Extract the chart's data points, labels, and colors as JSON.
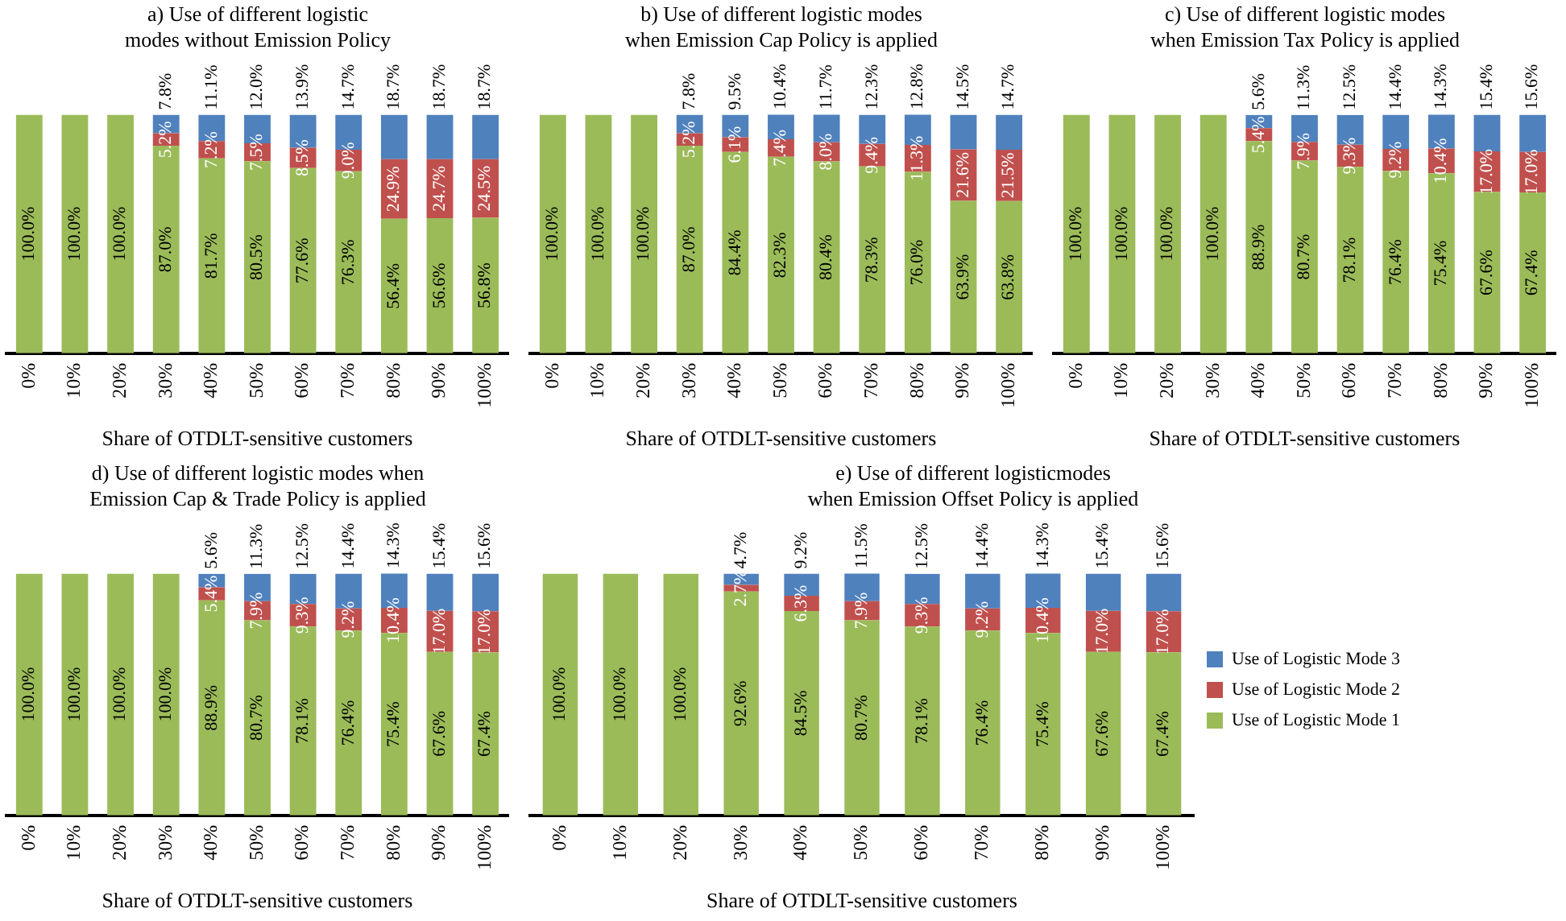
{
  "chart_data": [
    {
      "type": "bar",
      "stacked": true,
      "title": "a) Use of different logistic\nmodes without Emission Policy",
      "xlabel": "Share of OTDLT-sensitive customers",
      "categories": [
        "0%",
        "10%",
        "20%",
        "30%",
        "40%",
        "50%",
        "60%",
        "70%",
        "80%",
        "90%",
        "100%"
      ],
      "ylim": [
        0,
        100
      ],
      "tick_labels": "x",
      "legend": false,
      "series": [
        {
          "color": "#9bbb59",
          "values": [
            100,
            100,
            100,
            87.0,
            81.7,
            80.5,
            77.6,
            76.3,
            56.4,
            56.6,
            56.8
          ],
          "value_labels": [
            "100.0%",
            "100.0%",
            "100.0%",
            "87.0%",
            "81.7%",
            "80.5%",
            "77.6%",
            "76.3%",
            "56.4%",
            "56.6%",
            "56.8%"
          ]
        },
        {
          "color": "#c0504d",
          "values": [
            null,
            null,
            null,
            5.2,
            7.2,
            7.5,
            8.5,
            9.0,
            24.9,
            24.7,
            24.5
          ],
          "value_labels": [
            null,
            null,
            null,
            "5.2%",
            "7.2%",
            "7.5%",
            "8.5%",
            "9.0%",
            "24.9%",
            "24.7%",
            "24.5%"
          ]
        },
        {
          "color": "#4f81bd",
          "values": [
            null,
            null,
            null,
            7.8,
            11.1,
            12.0,
            13.9,
            14.7,
            18.7,
            18.7,
            18.7
          ],
          "value_labels": [
            null,
            null,
            null,
            "7.8%",
            "11.1%",
            "12.0%",
            "13.9%",
            "14.7%",
            "18.7%",
            "18.7%",
            "18.7%"
          ]
        }
      ]
    },
    {
      "type": "bar",
      "stacked": true,
      "title": "b) Use of different logistic modes\nwhen Emission Cap Policy is applied",
      "xlabel": "Share of OTDLT-sensitive customers",
      "categories": [
        "0%",
        "10%",
        "20%",
        "30%",
        "40%",
        "50%",
        "60%",
        "70%",
        "80%",
        "90%",
        "100%"
      ],
      "ylim": [
        0,
        100
      ],
      "tick_labels": "x",
      "legend": false,
      "series": [
        {
          "color": "#9bbb59",
          "values": [
            100,
            100,
            100,
            87.0,
            84.4,
            82.3,
            80.4,
            78.3,
            76.0,
            63.9,
            63.8
          ],
          "value_labels": [
            "100.0%",
            "100.0%",
            "100.0%",
            "87.0%",
            "84.4%",
            "82.3%",
            "80.4%",
            "78.3%",
            "76.0%",
            "63.9%",
            "63.8%"
          ]
        },
        {
          "color": "#c0504d",
          "values": [
            null,
            null,
            null,
            5.2,
            6.1,
            7.4,
            8.0,
            9.4,
            11.3,
            21.6,
            21.5
          ],
          "value_labels": [
            null,
            null,
            null,
            "5.2%",
            "6.1%",
            "7.4%",
            "8.0%",
            "9.4%",
            "11.3%",
            "21.6%",
            "21.5%"
          ]
        },
        {
          "color": "#4f81bd",
          "values": [
            null,
            null,
            null,
            7.8,
            9.5,
            10.4,
            11.7,
            12.3,
            12.8,
            14.5,
            14.7
          ],
          "value_labels": [
            null,
            null,
            null,
            "7.8%",
            "9.5%",
            "10.4%",
            "11.7%",
            "12.3%",
            "12.8%",
            "14.5%",
            "14.7%"
          ]
        }
      ]
    },
    {
      "type": "bar",
      "stacked": true,
      "title": "c) Use of different logistic modes\nwhen Emission Tax Policy is applied",
      "xlabel": "Share of OTDLT-sensitive customers",
      "categories": [
        "0%",
        "10%",
        "20%",
        "30%",
        "40%",
        "50%",
        "60%",
        "70%",
        "80%",
        "90%",
        "100%"
      ],
      "ylim": [
        0,
        100
      ],
      "tick_labels": "x",
      "legend": false,
      "series": [
        {
          "color": "#9bbb59",
          "values": [
            100,
            100,
            100,
            100,
            88.9,
            80.7,
            78.1,
            76.4,
            75.4,
            67.6,
            67.4
          ],
          "value_labels": [
            "100.0%",
            "100.0%",
            "100.0%",
            "100.0%",
            "88.9%",
            "80.7%",
            "78.1%",
            "76.4%",
            "75.4%",
            "67.6%",
            "67.4%"
          ]
        },
        {
          "color": "#c0504d",
          "values": [
            null,
            null,
            null,
            null,
            5.4,
            7.9,
            9.3,
            9.2,
            10.4,
            17.0,
            17.0
          ],
          "value_labels": [
            null,
            null,
            null,
            null,
            "5.4%",
            "7.9%",
            "9.3%",
            "9.2%",
            "10.4%",
            "17.0%",
            "17.0%"
          ]
        },
        {
          "color": "#4f81bd",
          "values": [
            null,
            null,
            null,
            null,
            5.6,
            11.3,
            12.5,
            14.4,
            14.3,
            15.4,
            15.6
          ],
          "value_labels": [
            null,
            null,
            null,
            null,
            "5.6%",
            "11.3%",
            "12.5%",
            "14.4%",
            "14.3%",
            "15.4%",
            "15.6%"
          ]
        }
      ]
    },
    {
      "type": "bar",
      "stacked": true,
      "title": "d) Use of different logistic modes when\nEmission Cap & Trade Policy is applied",
      "xlabel": "Share of OTDLT-sensitive customers",
      "categories": [
        "0%",
        "10%",
        "20%",
        "30%",
        "40%",
        "50%",
        "60%",
        "70%",
        "80%",
        "90%",
        "100%"
      ],
      "ylim": [
        0,
        100
      ],
      "tick_labels": "x",
      "legend": false,
      "series": [
        {
          "color": "#9bbb59",
          "values": [
            100,
            100,
            100,
            100,
            88.9,
            80.7,
            78.1,
            76.4,
            75.4,
            67.6,
            67.4
          ],
          "value_labels": [
            "100.0%",
            "100.0%",
            "100.0%",
            "100.0%",
            "88.9%",
            "80.7%",
            "78.1%",
            "76.4%",
            "75.4%",
            "67.6%",
            "67.4%"
          ]
        },
        {
          "color": "#c0504d",
          "values": [
            null,
            null,
            null,
            null,
            5.4,
            7.9,
            9.3,
            9.2,
            10.4,
            17.0,
            17.0
          ],
          "value_labels": [
            null,
            null,
            null,
            null,
            "5.4%",
            "7.9%",
            "9.3%",
            "9.2%",
            "10.4%",
            "17.0%",
            "17.0%"
          ]
        },
        {
          "color": "#4f81bd",
          "values": [
            null,
            null,
            null,
            null,
            5.6,
            11.3,
            12.5,
            14.4,
            14.3,
            15.4,
            15.6
          ],
          "value_labels": [
            null,
            null,
            null,
            null,
            "5.6%",
            "11.3%",
            "12.5%",
            "14.4%",
            "14.3%",
            "15.4%",
            "15.6%"
          ]
        }
      ]
    },
    {
      "type": "bar",
      "stacked": true,
      "title": "e) Use of different logisticmodes\nwhen Emission Offset Policy is applied",
      "xlabel": "Share of OTDLT-sensitive customers",
      "categories": [
        "0%",
        "10%",
        "20%",
        "30%",
        "40%",
        "50%",
        "60%",
        "70%",
        "80%",
        "90%",
        "100%"
      ],
      "ylim": [
        0,
        100
      ],
      "tick_labels": "x",
      "legend": "right",
      "series": [
        {
          "name": "Use of Logistic Mode 1",
          "color": "#9bbb59",
          "values": [
            100,
            100,
            100,
            92.6,
            84.5,
            80.7,
            78.1,
            76.4,
            75.4,
            67.6,
            67.4
          ],
          "value_labels": [
            "100.0%",
            "100.0%",
            "100.0%",
            "92.6%",
            "84.5%",
            "80.7%",
            "78.1%",
            "76.4%",
            "75.4%",
            "67.6%",
            "67.4%"
          ]
        },
        {
          "name": "Use of Logistic Mode 2",
          "color": "#c0504d",
          "values": [
            null,
            null,
            null,
            2.7,
            6.3,
            7.9,
            9.3,
            9.2,
            10.4,
            17.0,
            17.0
          ],
          "value_labels": [
            null,
            null,
            null,
            "2.7%",
            "6.3%",
            "7.9%",
            "9.3%",
            "9.2%",
            "10.4%",
            "17.0%",
            "17.0%"
          ]
        },
        {
          "name": "Use of Logistic Mode 3",
          "color": "#4f81bd",
          "values": [
            null,
            null,
            null,
            4.7,
            9.2,
            11.5,
            12.5,
            14.4,
            14.3,
            15.4,
            15.6
          ],
          "value_labels": [
            null,
            null,
            null,
            "4.7%",
            "9.2%",
            "11.5%",
            "12.5%",
            "14.4%",
            "14.3%",
            "15.4%",
            "15.6%"
          ]
        }
      ]
    }
  ]
}
